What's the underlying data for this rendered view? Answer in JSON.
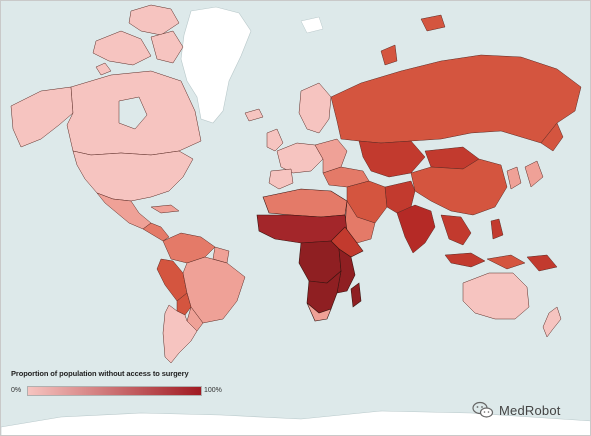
{
  "legend": {
    "title": "Proportion of population without access to surgery",
    "min_label": "0%",
    "max_label": "100%",
    "color_low": "#f6c4c0",
    "color_high": "#a01a22"
  },
  "watermark": {
    "text": "MedRobot",
    "icon": "wechat-icon"
  },
  "colors": {
    "ocean": "#dde9ea",
    "land_white": "#ffffff",
    "very_light": "#f6c4c0",
    "light": "#efa197",
    "medium": "#e47a68",
    "medium_dark": "#d4553f",
    "dark": "#c23a2e",
    "very_dark": "#8f1f22",
    "border": "#3a1410"
  }
}
